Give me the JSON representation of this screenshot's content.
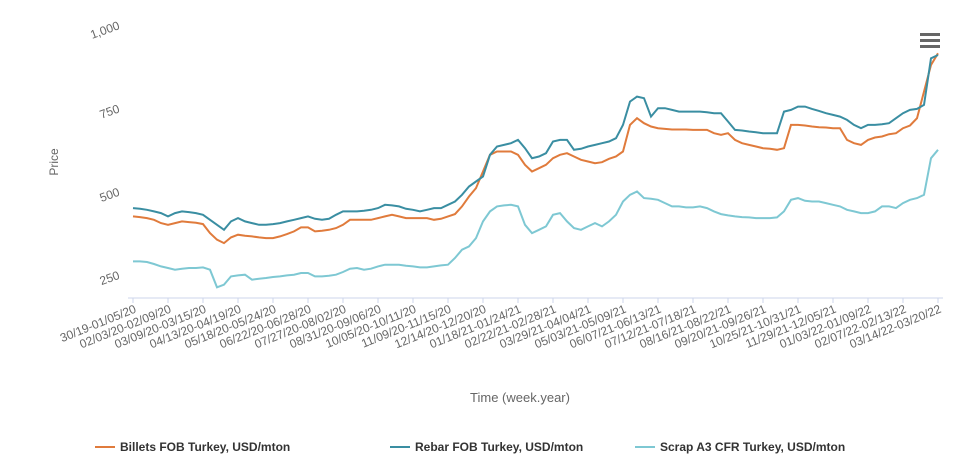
{
  "chart_data": {
    "type": "line",
    "xlabel": "Time (week.year)",
    "ylabel": "Price",
    "ylim": [
      180,
      1000
    ],
    "yticks": [
      250,
      500,
      750,
      {
        "value": 1000,
        "label": "1,000"
      }
    ],
    "legend": "bottom",
    "categories": [
      "30/19-01/05/20",
      null,
      null,
      null,
      null,
      "02/03/20-02/09/20",
      null,
      null,
      null,
      null,
      "03/09/20-03/15/20",
      null,
      null,
      null,
      null,
      "04/13/20-04/19/20",
      null,
      null,
      null,
      null,
      "05/18/20-05/24/20",
      null,
      null,
      null,
      null,
      "06/22/20-06/28/20",
      null,
      null,
      null,
      null,
      "07/27/20-08/02/20",
      null,
      null,
      null,
      null,
      "08/31/20-09/06/20",
      null,
      null,
      null,
      null,
      "10/05/20-10/11/20",
      null,
      null,
      null,
      null,
      "11/09/20-11/15/20",
      null,
      null,
      null,
      null,
      "12/14/20-12/20/20",
      null,
      null,
      null,
      null,
      "01/18/21-01/24/21",
      null,
      null,
      null,
      null,
      "02/22/21-02/28/21",
      null,
      null,
      null,
      null,
      "03/29/21-04/04/21",
      null,
      null,
      null,
      null,
      "05/03/21-05/09/21",
      null,
      null,
      null,
      null,
      "06/07/21-06/13/21",
      null,
      null,
      null,
      null,
      "07/12/21-07/18/21",
      null,
      null,
      null,
      null,
      "08/16/21-08/22/21",
      null,
      null,
      null,
      null,
      "09/20/21-09/26/21",
      null,
      null,
      null,
      null,
      "10/25/21-10/31/21",
      null,
      null,
      null,
      null,
      "11/29/21-12/05/21",
      null,
      null,
      null,
      null,
      "01/03/22-01/09/22",
      null,
      null,
      null,
      null,
      "02/07/22-02/13/22",
      null,
      null,
      null,
      null,
      "03/14/22-03/20/22"
    ],
    "series": [
      {
        "name": "Billets FOB Turkey, USD/mton",
        "color": "#e07b3c",
        "values": [
          425,
          423,
          420,
          415,
          405,
          400,
          405,
          410,
          408,
          406,
          402,
          375,
          355,
          345,
          362,
          370,
          367,
          365,
          362,
          360,
          360,
          365,
          372,
          380,
          392,
          392,
          380,
          382,
          385,
          390,
          400,
          415,
          415,
          415,
          415,
          420,
          425,
          430,
          425,
          420,
          420,
          420,
          420,
          415,
          418,
          425,
          432,
          455,
          485,
          510,
          560,
          610,
          620,
          620,
          620,
          610,
          580,
          560,
          570,
          580,
          600,
          610,
          615,
          605,
          595,
          590,
          585,
          588,
          598,
          605,
          620,
          700,
          720,
          705,
          695,
          690,
          688,
          686,
          686,
          686,
          685,
          685,
          685,
          675,
          670,
          675,
          655,
          645,
          640,
          635,
          630,
          628,
          625,
          630,
          700,
          700,
          698,
          695,
          693,
          692,
          690,
          690,
          655,
          645,
          640,
          655,
          662,
          665,
          672,
          675,
          690,
          698,
          720,
          800,
          880,
          915
        ]
      },
      {
        "name": "Rebar FOB Turkey, USD/mton",
        "color": "#3a8ea2",
        "values": [
          450,
          448,
          445,
          440,
          435,
          425,
          435,
          440,
          438,
          435,
          430,
          415,
          400,
          385,
          410,
          420,
          410,
          405,
          400,
          400,
          402,
          405,
          410,
          415,
          420,
          425,
          418,
          415,
          418,
          430,
          440,
          440,
          440,
          442,
          445,
          450,
          460,
          458,
          455,
          448,
          445,
          440,
          445,
          450,
          450,
          460,
          470,
          490,
          515,
          530,
          545,
          610,
          635,
          640,
          645,
          655,
          630,
          600,
          605,
          615,
          650,
          655,
          655,
          625,
          628,
          635,
          640,
          645,
          650,
          660,
          700,
          770,
          785,
          780,
          725,
          750,
          750,
          745,
          740,
          740,
          740,
          740,
          738,
          735,
          735,
          710,
          685,
          683,
          680,
          678,
          675,
          675,
          675,
          740,
          745,
          755,
          755,
          748,
          742,
          735,
          730,
          725,
          715,
          700,
          690,
          700,
          700,
          702,
          705,
          720,
          735,
          745,
          748,
          760,
          900,
          910
        ]
      },
      {
        "name": "Scrap A3 CFR Turkey, USD/mton",
        "color": "#7ec8d3",
        "values": [
          290,
          290,
          288,
          282,
          275,
          270,
          265,
          268,
          270,
          270,
          272,
          265,
          212,
          220,
          245,
          248,
          250,
          235,
          238,
          240,
          243,
          245,
          248,
          250,
          255,
          255,
          245,
          245,
          247,
          250,
          258,
          268,
          270,
          265,
          268,
          275,
          280,
          280,
          280,
          277,
          275,
          272,
          272,
          275,
          278,
          280,
          300,
          325,
          335,
          360,
          410,
          440,
          455,
          458,
          460,
          455,
          400,
          375,
          385,
          395,
          430,
          435,
          410,
          390,
          385,
          395,
          405,
          395,
          410,
          430,
          470,
          490,
          500,
          480,
          478,
          475,
          465,
          455,
          455,
          452,
          452,
          455,
          450,
          440,
          432,
          428,
          425,
          423,
          422,
          420,
          420,
          420,
          422,
          440,
          475,
          480,
          472,
          470,
          470,
          465,
          460,
          455,
          445,
          440,
          435,
          435,
          440,
          455,
          455,
          450,
          465,
          475,
          480,
          490,
          600,
          625
        ]
      }
    ]
  }
}
